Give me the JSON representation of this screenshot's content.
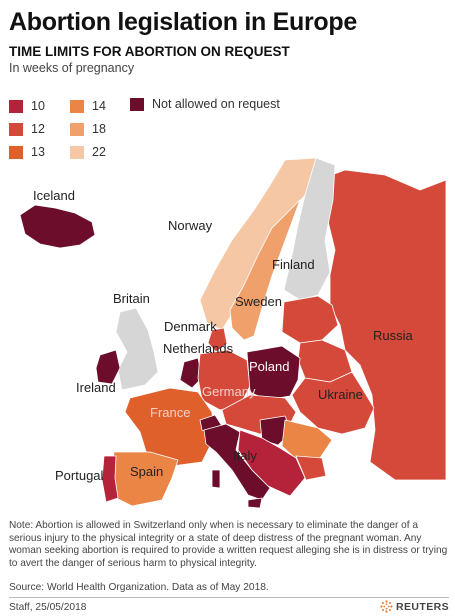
{
  "header": {
    "title": "Abortion legislation in Europe",
    "subtitle": "TIME LIMITS FOR ABORTION ON REQUEST",
    "units": "In weeks of pregnancy"
  },
  "legend": {
    "items": [
      {
        "label": "10",
        "color": "#b5233a"
      },
      {
        "label": "12",
        "color": "#d4493a"
      },
      {
        "label": "13",
        "color": "#e0602c"
      },
      {
        "label": "14",
        "color": "#ea8545"
      },
      {
        "label": "18",
        "color": "#f0a06a"
      },
      {
        "label": "22",
        "color": "#f6c7a4"
      },
      {
        "label": "Not allowed on request",
        "color": "#6b0d2b"
      }
    ]
  },
  "map": {
    "colors": {
      "sea": "#ffffff",
      "no_data": "#d6d6d6",
      "border": "#ffffff"
    },
    "labels": {
      "iceland": "Iceland",
      "norway": "Norway",
      "finland": "Finland",
      "britain": "Britain",
      "sweden": "Sweden",
      "denmark": "Denmark",
      "netherlands": "Netherlands",
      "russia": "Russia",
      "poland": "Poland",
      "ireland": "Ireland",
      "germany": "Germany",
      "ukraine": "Ukraine",
      "france": "France",
      "italy": "Italy",
      "portugal": "Portugal",
      "spain": "Spain"
    }
  },
  "footer": {
    "note": "Note: Abortion is allowed in Switzerland only when is necessary to eliminate the danger of a serious injury to the physical integrity or a state of deep distress of the pregnant woman. Any woman seeking abortion is required to provide a written request alleging she is in distress or trying to avert the danger of serious harm to physical integrity.",
    "source": "Source:  World Health Organization. Data as of May 2018.",
    "credit": "Staff, 25/05/2018",
    "brand": "REUTERS"
  }
}
